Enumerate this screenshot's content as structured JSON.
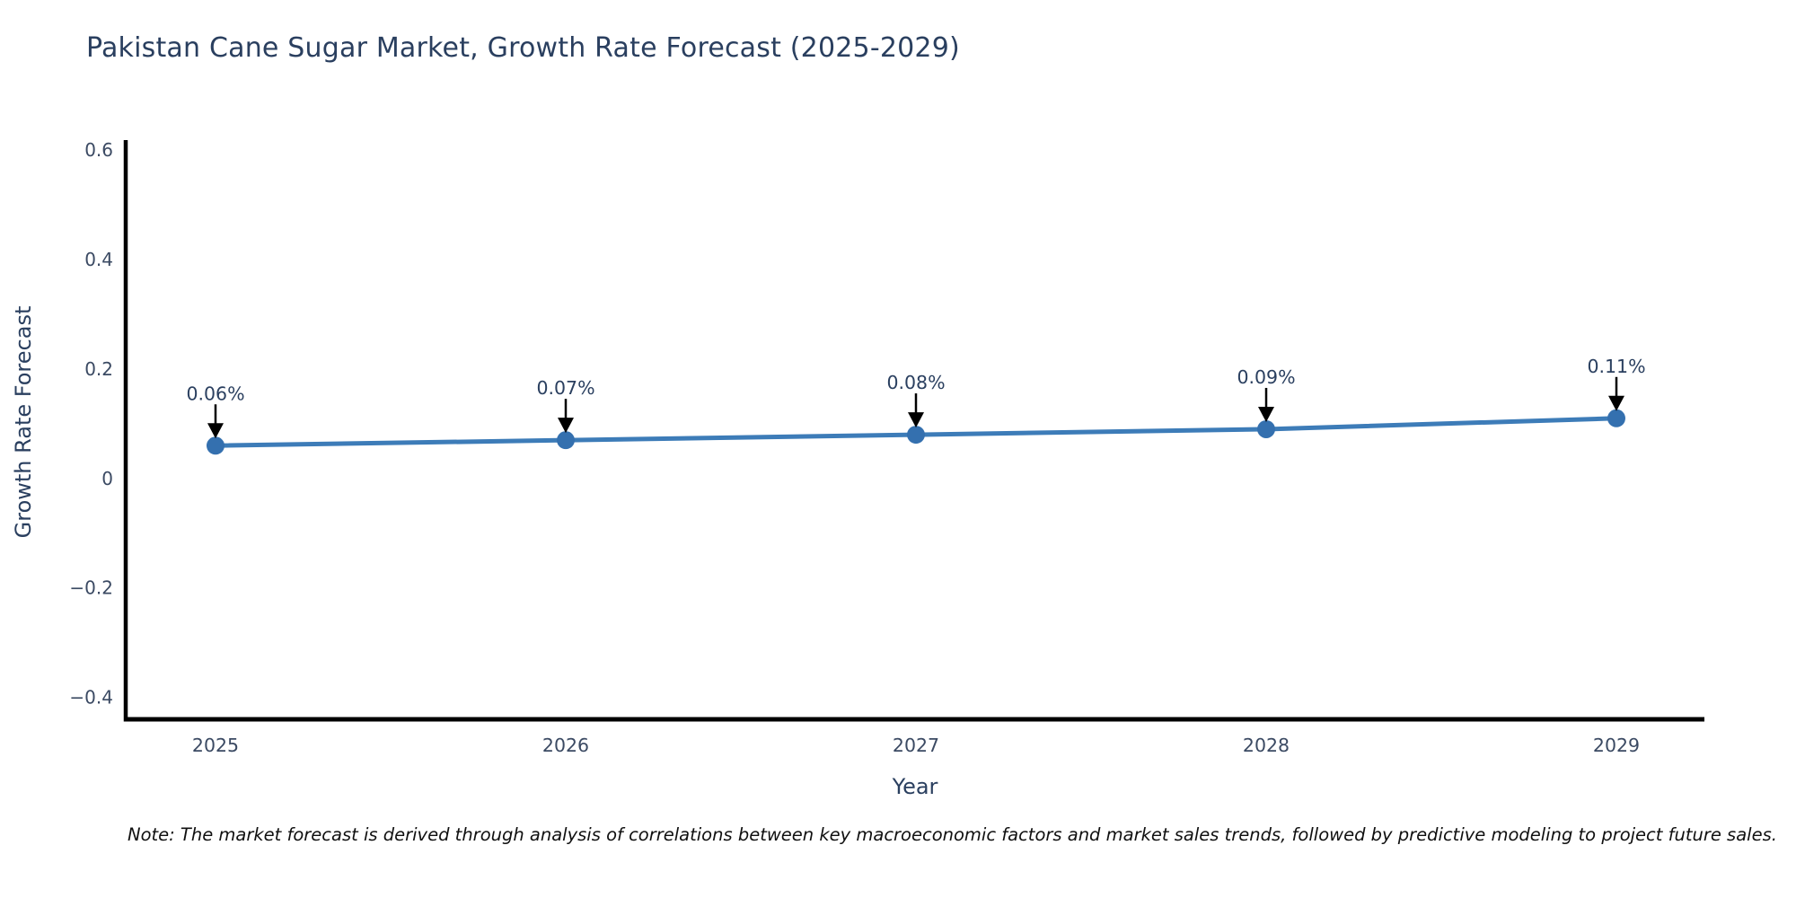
{
  "page": {
    "background": "#ffffff"
  },
  "note": "Note: The market forecast is derived through analysis of correlations between key macroeconomic factors and market sales trends, followed by predictive modeling to project future sales.",
  "chart_data": {
    "type": "line",
    "title": "Pakistan Cane Sugar Market, Growth Rate Forecast (2025-2029)",
    "xlabel": "Year",
    "ylabel": "Growth Rate Forecast",
    "x": [
      2025,
      2026,
      2027,
      2028,
      2029
    ],
    "y": [
      0.06,
      0.07,
      0.08,
      0.09,
      0.11
    ],
    "point_labels": [
      "0.06%",
      "0.07%",
      "0.08%",
      "0.09%",
      "0.11%"
    ],
    "yticks": [
      0.6,
      0.4,
      0.2,
      0,
      -0.2,
      -0.4
    ],
    "ylim": [
      -0.44,
      0.615
    ],
    "grid": false,
    "legend": false,
    "annotations": "value labels with down arrows pointing at each marker",
    "colors": {
      "line": "#3d7cb8",
      "marker": "#3470af",
      "axis": "#000000",
      "title_text": "#2a3f5f",
      "tick_text": "#3b4a63",
      "annotation_text": "#2a3f5f",
      "arrow": "#000000"
    }
  }
}
